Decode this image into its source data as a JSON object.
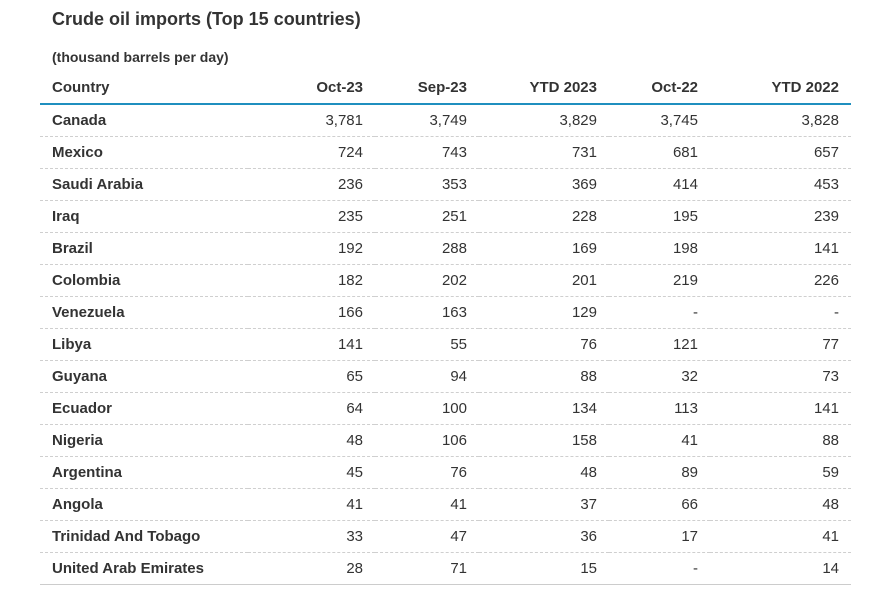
{
  "chart_data": {
    "type": "table",
    "title": "Crude oil imports (Top 15 countries)",
    "subtitle": "(thousand barrels per day)",
    "columns": [
      "Country",
      "Oct-23",
      "Sep-23",
      "YTD 2023",
      "Oct-22",
      "YTD 2022"
    ],
    "rows": [
      [
        "Canada",
        "3,781",
        "3,749",
        "3,829",
        "3,745",
        "3,828"
      ],
      [
        "Mexico",
        "724",
        "743",
        "731",
        "681",
        "657"
      ],
      [
        "Saudi Arabia",
        "236",
        "353",
        "369",
        "414",
        "453"
      ],
      [
        "Iraq",
        "235",
        "251",
        "228",
        "195",
        "239"
      ],
      [
        "Brazil",
        "192",
        "288",
        "169",
        "198",
        "141"
      ],
      [
        "Colombia",
        "182",
        "202",
        "201",
        "219",
        "226"
      ],
      [
        "Venezuela",
        "166",
        "163",
        "129",
        "-",
        "-"
      ],
      [
        "Libya",
        "141",
        "55",
        "76",
        "121",
        "77"
      ],
      [
        "Guyana",
        "65",
        "94",
        "88",
        "32",
        "73"
      ],
      [
        "Ecuador",
        "64",
        "100",
        "134",
        "113",
        "141"
      ],
      [
        "Nigeria",
        "48",
        "106",
        "158",
        "41",
        "88"
      ],
      [
        "Argentina",
        "45",
        "76",
        "48",
        "89",
        "59"
      ],
      [
        "Angola",
        "41",
        "41",
        "37",
        "66",
        "48"
      ],
      [
        "Trinidad And Tobago",
        "33",
        "47",
        "36",
        "17",
        "41"
      ],
      [
        "United Arab Emirates",
        "28",
        "71",
        "15",
        "-",
        "14"
      ]
    ]
  },
  "colors": {
    "header_rule": "#1f8fbf",
    "text": "#333333",
    "row_divider": "#cfcfcf"
  }
}
